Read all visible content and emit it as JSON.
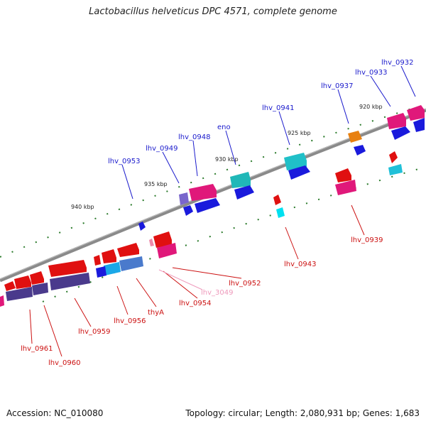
{
  "title": "Lactobacillus helveticus DPC 4571, complete genome",
  "footer": {
    "accession": "Accession: NC_010080",
    "topology": "Topology: circular; Length: 2,080,931 bp; Genes: 1,683"
  },
  "scale_labels": [
    "920 kbp",
    "925 kbp",
    "930 kbp",
    "935 kbp",
    "940 kbp"
  ],
  "genes_forward": [
    "lhv_0932",
    "lhv_0933",
    "lhv_0937",
    "lhv_0941",
    "eno",
    "lhv_0948",
    "lhv_0949",
    "lhv_0953"
  ],
  "genes_reverse": [
    "lhv_0939",
    "lhv_0943",
    "lhv_0952",
    "lhv_3049",
    "lhv_0954",
    "thyA",
    "lhv_0956",
    "lhv_0959",
    "lhv_0961",
    "lhv_0960"
  ],
  "colors": {
    "forward_label": "#1a1acc",
    "reverse_label": "#cc1111",
    "pseudo_label": "#ee99bb",
    "backbone": "#888888",
    "tick": "#2a7a2a"
  }
}
